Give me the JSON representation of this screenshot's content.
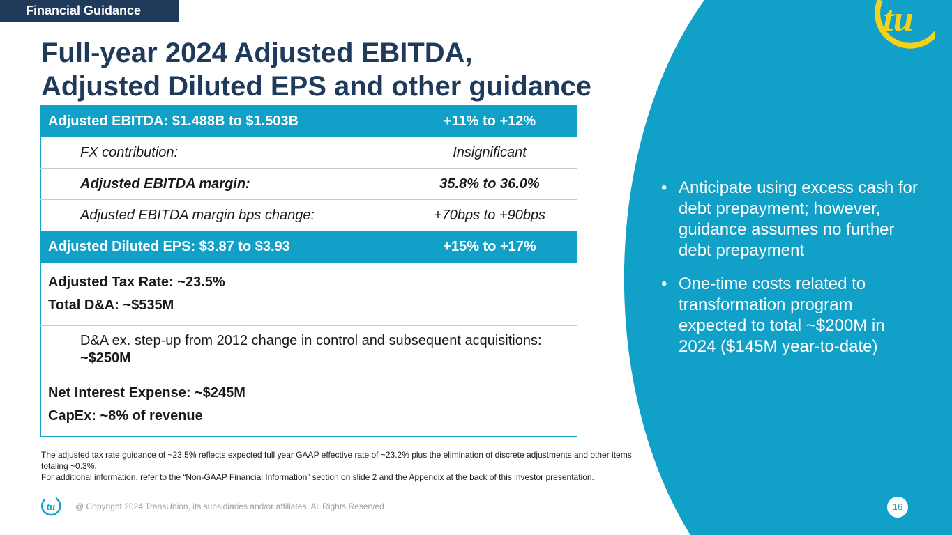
{
  "section_tag": "Financial Guidance",
  "title": {
    "line1": "Full-year 2024 Adjusted EBITDA,",
    "line2": "Adjusted Diluted EPS and other guidance"
  },
  "colors": {
    "accent": "#11a0c8",
    "navy": "#1f3a5a",
    "logo": "#f2d21c"
  },
  "table": {
    "ebitda": {
      "label": "Adjusted EBITDA: $1.488B to $1.503B",
      "value": "+11% to +12%"
    },
    "fx": {
      "label": "FX contribution:",
      "value": "Insignificant"
    },
    "margin": {
      "label": "Adjusted EBITDA margin:",
      "value": "35.8% to 36.0%"
    },
    "margin_bps": {
      "label": "Adjusted EBITDA margin bps change:",
      "value": "+70bps to +90bps"
    },
    "eps": {
      "label": "Adjusted Diluted EPS: $3.87 to $3.93",
      "value": "+15% to +17%"
    },
    "tax_rate": "Adjusted Tax Rate: ~23.5%",
    "total_da": "Total D&A: ~$535M",
    "da_ex": {
      "text": "D&A ex. step-up from 2012 change in control and subsequent acquisitions: ",
      "value": "~$250M"
    },
    "interest": "Net Interest Expense: ~$245M",
    "capex": "CapEx: ~8% of revenue"
  },
  "bullets": [
    "Anticipate using excess cash for debt prepayment; however, guidance assumes no further debt prepayment",
    "One-time costs related to transformation program expected to total ~$200M in 2024 ($145M year-to-date)"
  ],
  "bullet_glyph": "•",
  "footnotes": {
    "line1": "The adjusted tax rate guidance of ~23.5% reflects expected full year GAAP effective rate of ~23.2% plus the elimination of discrete adjustments and other items totaling ~0.3%.",
    "line2": "For additional information, refer to the “Non-GAAP Financial Information” section on slide 2 and the Appendix at the back of this investor presentation."
  },
  "copyright": "@ Copyright 2024 TransUnion, its subsidiaries and/or affiliates.  All Rights Reserved.",
  "page_number": "16"
}
